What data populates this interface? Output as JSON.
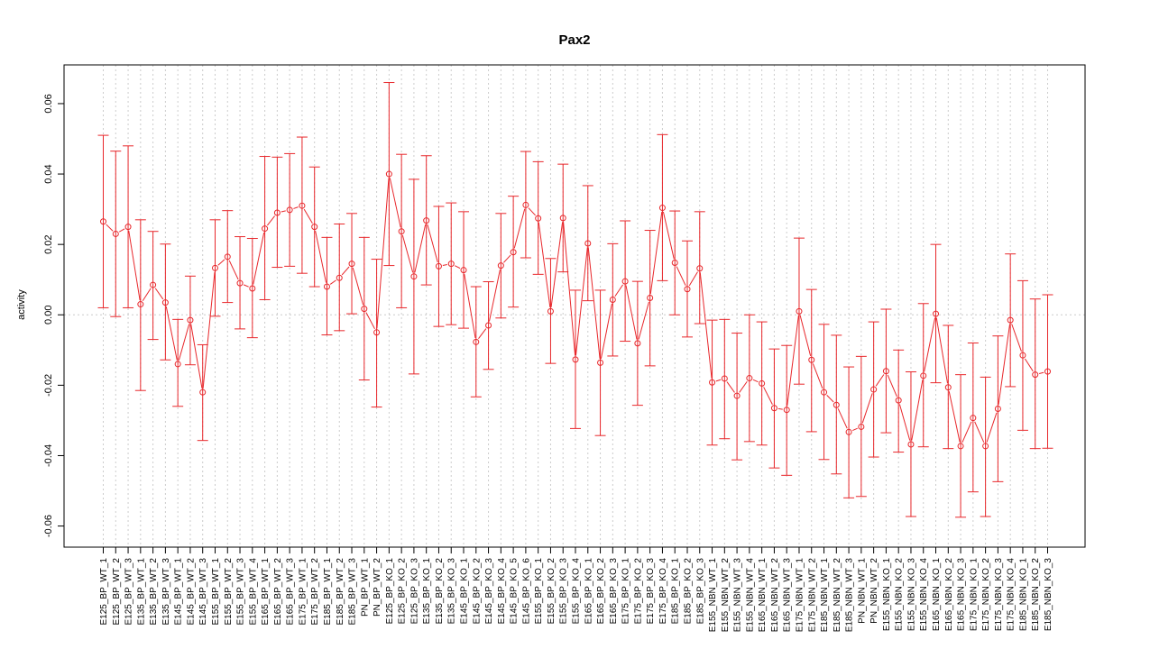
{
  "chart_data": {
    "type": "line",
    "title": "Pax2",
    "xlabel": "",
    "ylabel": "activity",
    "ylim": [
      -0.066,
      0.071
    ],
    "yticks": [
      -0.06,
      -0.04,
      -0.02,
      0.0,
      0.02,
      0.04,
      0.06
    ],
    "ytick_labels": [
      "-0.06",
      "-0.04",
      "-0.02",
      "0.00",
      "0.02",
      "0.04",
      "0.06"
    ],
    "grid": true,
    "legend": "none",
    "colors": {
      "series": "#e8272b",
      "grid": "#cccccc",
      "axis": "#000000"
    },
    "categories": [
      "E125_BP_WT_1",
      "E125_BP_WT_2",
      "E125_BP_WT_3",
      "E135_BP_WT_1",
      "E135_BP_WT_2",
      "E135_BP_WT_3",
      "E145_BP_WT_1",
      "E145_BP_WT_2",
      "E145_BP_WT_3",
      "E155_BP_WT_1",
      "E155_BP_WT_2",
      "E155_BP_WT_3",
      "E155_BP_WT_4",
      "E165_BP_WT_1",
      "E165_BP_WT_2",
      "E165_BP_WT_3",
      "E175_BP_WT_1",
      "E175_BP_WT_2",
      "E185_BP_WT_1",
      "E185_BP_WT_2",
      "E185_BP_WT_3",
      "PN_BP_WT_1",
      "PN_BP_WT_2",
      "E125_BP_KO_1",
      "E125_BP_KO_2",
      "E125_BP_KO_3",
      "E135_BP_KO_1",
      "E135_BP_KO_2",
      "E135_BP_KO_3",
      "E145_BP_KO_1",
      "E145_BP_KO_2",
      "E145_BP_KO_3",
      "E145_BP_KO_4",
      "E145_BP_KO_5",
      "E145_BP_KO_6",
      "E155_BP_KO_1",
      "E155_BP_KO_2",
      "E155_BP_KO_3",
      "E155_BP_KO_4",
      "E165_BP_KO_1",
      "E165_BP_KO_2",
      "E165_BP_KO_3",
      "E175_BP_KO_1",
      "E175_BP_KO_2",
      "E175_BP_KO_3",
      "E175_BP_KO_4",
      "E185_BP_KO_1",
      "E185_BP_KO_2",
      "E185_BP_KO_3",
      "E155_NBN_WT_1",
      "E155_NBN_WT_2",
      "E155_NBN_WT_3",
      "E155_NBN_WT_4",
      "E165_NBN_WT_1",
      "E165_NBN_WT_2",
      "E165_NBN_WT_3",
      "E175_NBN_WT_1",
      "E175_NBN_WT_2",
      "E185_NBN_WT_1",
      "E185_NBN_WT_2",
      "E185_NBN_WT_3",
      "PN_NBN_WT_1",
      "PN_NBN_WT_2",
      "E155_NBN_KO_1",
      "E155_NBN_KO_2",
      "E155_NBN_KO_3",
      "E155_NBN_KO_4",
      "E165_NBN_KO_1",
      "E165_NBN_KO_2",
      "E165_NBN_KO_3",
      "E175_NBN_KO_1",
      "E175_NBN_KO_2",
      "E175_NBN_KO_3",
      "E175_NBN_KO_4",
      "E185_NBN_KO_1",
      "E185_NBN_KO_2",
      "E185_NBN_KO_3"
    ],
    "series": [
      {
        "values": [
          0.0265,
          0.023,
          0.025,
          0.003,
          0.0085,
          0.0035,
          -0.014,
          -0.0015,
          -0.022,
          0.0133,
          0.0165,
          0.009,
          0.0075,
          0.0245,
          0.029,
          0.0298,
          0.031,
          0.025,
          0.008,
          0.0105,
          0.0145,
          0.0017,
          -0.005,
          0.04,
          0.0237,
          0.0109,
          0.0268,
          0.0138,
          0.0145,
          0.0127,
          -0.0077,
          -0.003,
          0.014,
          0.0178,
          0.0312,
          0.0274,
          0.001,
          0.0275,
          -0.0127,
          0.0203,
          -0.0136,
          0.0043,
          0.0095,
          -0.0081,
          0.0048,
          0.0304,
          0.0148,
          0.0073,
          0.0132,
          -0.0192,
          -0.0181,
          -0.023,
          -0.018,
          -0.0195,
          -0.0265,
          -0.027,
          0.001,
          -0.0128,
          -0.022,
          -0.0256,
          -0.0333,
          -0.0318,
          -0.0212,
          -0.016,
          -0.0243,
          -0.0368,
          -0.0173,
          0.0003,
          -0.0206,
          -0.0373,
          -0.0293,
          -0.0373,
          -0.0267,
          -0.0015,
          -0.0115,
          -0.017,
          -0.0161
        ],
        "lower": [
          0.002,
          -0.0005,
          0.002,
          -0.0215,
          -0.007,
          -0.0128,
          -0.026,
          -0.0142,
          -0.0357,
          -0.0004,
          0.0035,
          -0.004,
          -0.0065,
          0.0043,
          0.0135,
          0.0138,
          0.0118,
          0.008,
          -0.0057,
          -0.0045,
          0.0003,
          -0.0185,
          -0.0262,
          0.014,
          0.002,
          -0.0168,
          0.0085,
          -0.0033,
          -0.0028,
          -0.0038,
          -0.0233,
          -0.0155,
          -0.0009,
          0.0022,
          0.0162,
          0.0115,
          -0.0138,
          0.0122,
          -0.0323,
          0.004,
          -0.0343,
          -0.0117,
          -0.0075,
          -0.0257,
          -0.0145,
          0.0097,
          0.0,
          -0.0063,
          -0.0025,
          -0.037,
          -0.0352,
          -0.0412,
          -0.036,
          -0.037,
          -0.0435,
          -0.0456,
          -0.0197,
          -0.0332,
          -0.0411,
          -0.0452,
          -0.052,
          -0.0516,
          -0.0404,
          -0.0335,
          -0.039,
          -0.0573,
          -0.0375,
          -0.0193,
          -0.038,
          -0.0575,
          -0.0503,
          -0.0573,
          -0.0474,
          -0.0204,
          -0.0328,
          -0.038,
          -0.0379
        ],
        "upper": [
          0.051,
          0.0465,
          0.048,
          0.027,
          0.0237,
          0.0201,
          -0.0013,
          0.011,
          -0.0085,
          0.027,
          0.0296,
          0.0222,
          0.0217,
          0.045,
          0.0448,
          0.0458,
          0.0505,
          0.042,
          0.022,
          0.0258,
          0.0288,
          0.022,
          0.0158,
          0.066,
          0.0456,
          0.0385,
          0.0452,
          0.0308,
          0.0318,
          0.0293,
          0.008,
          0.0094,
          0.0288,
          0.0337,
          0.0464,
          0.0435,
          0.016,
          0.0428,
          0.007,
          0.0367,
          0.007,
          0.0202,
          0.0267,
          0.0095,
          0.024,
          0.0512,
          0.0295,
          0.021,
          0.0293,
          -0.0015,
          -0.0013,
          -0.0052,
          0.0,
          -0.002,
          -0.0097,
          -0.0087,
          0.0218,
          0.0072,
          -0.0027,
          -0.0058,
          -0.0148,
          -0.0118,
          -0.002,
          0.0016,
          -0.01,
          -0.0162,
          0.0032,
          0.02,
          -0.003,
          -0.017,
          -0.008,
          -0.0177,
          -0.006,
          0.0173,
          0.0097,
          0.0045,
          0.0057
        ]
      }
    ]
  }
}
